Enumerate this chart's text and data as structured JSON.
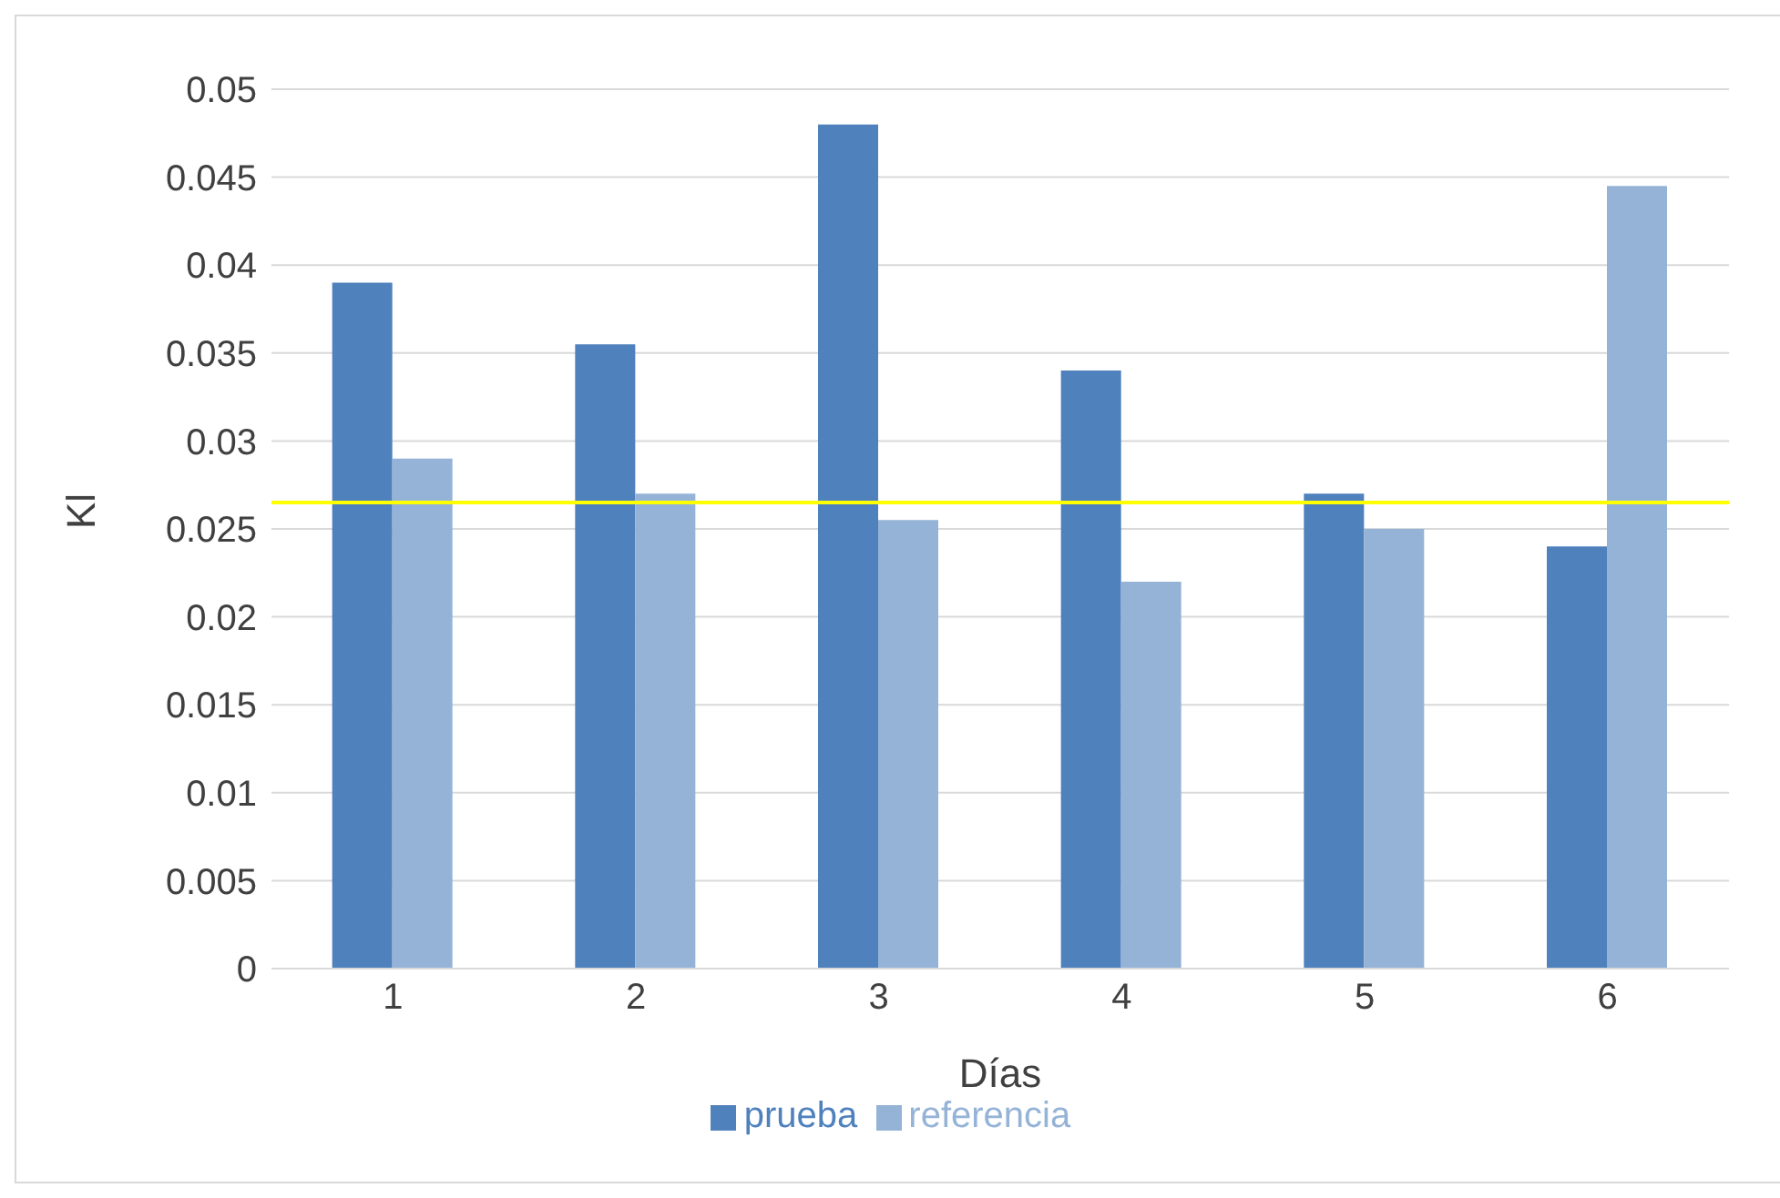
{
  "chart_data": {
    "type": "bar",
    "xlabel": "Días",
    "ylabel": "Kl",
    "categories": [
      "1",
      "2",
      "3",
      "4",
      "5",
      "6"
    ],
    "series": [
      {
        "name": "prueba",
        "color": "#4f81bd",
        "values": [
          0.039,
          0.0355,
          0.048,
          0.034,
          0.027,
          0.024
        ]
      },
      {
        "name": "referencia",
        "color": "#95b3d7",
        "values": [
          0.029,
          0.027,
          0.0255,
          0.022,
          0.025,
          0.0445
        ]
      }
    ],
    "ylim": [
      0,
      0.05
    ],
    "yticks": [
      0,
      0.005,
      0.01,
      0.015,
      0.02,
      0.025,
      0.03,
      0.035,
      0.04,
      0.045,
      0.05
    ],
    "grid": "y",
    "legend": "bottom",
    "ref_lines": [
      {
        "axis": "y",
        "value": 0.0265,
        "color": "#ffff00"
      }
    ]
  }
}
